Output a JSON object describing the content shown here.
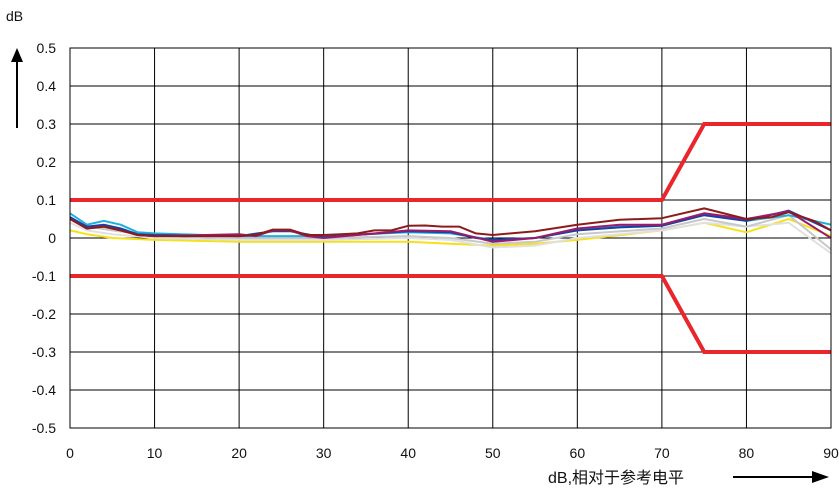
{
  "chart_data": {
    "type": "line",
    "title": "",
    "ylabel": "dB",
    "xlabel": "dB,相对于参考电平",
    "xlim": [
      0,
      90
    ],
    "ylim": [
      -0.5,
      0.5
    ],
    "x_ticks": [
      0,
      10,
      20,
      30,
      40,
      50,
      60,
      70,
      80,
      90
    ],
    "y_ticks": [
      0.5,
      0.4,
      0.3,
      0.2,
      0.1,
      0,
      -0.1,
      -0.2,
      -0.3,
      -0.4,
      -0.5
    ],
    "y_tick_labels": [
      "0.5",
      "0.4",
      "0.3",
      "0.2",
      "0.1",
      "0",
      "-0.1",
      "-0.2",
      "-0.3",
      "-0.4",
      "-0.5"
    ],
    "grid": true,
    "legend": "none",
    "limit_lines": [
      {
        "color": "#e8262b",
        "points": [
          [
            0,
            0.1
          ],
          [
            70,
            0.1
          ],
          [
            75,
            0.3
          ],
          [
            90,
            0.3
          ]
        ]
      },
      {
        "color": "#e8262b",
        "points": [
          [
            0,
            -0.1
          ],
          [
            70,
            -0.1
          ],
          [
            75,
            -0.3
          ],
          [
            90,
            -0.3
          ]
        ]
      }
    ],
    "series": [
      {
        "color": "#f4e11a",
        "points": [
          [
            0,
            0.02
          ],
          [
            2,
            0.01
          ],
          [
            5,
            0.0
          ],
          [
            10,
            -0.005
          ],
          [
            20,
            -0.01
          ],
          [
            30,
            -0.01
          ],
          [
            40,
            -0.01
          ],
          [
            45,
            -0.015
          ],
          [
            50,
            -0.02
          ],
          [
            55,
            -0.015
          ],
          [
            60,
            -0.005
          ],
          [
            70,
            0.02
          ],
          [
            75,
            0.04
          ],
          [
            80,
            0.015
          ],
          [
            85,
            0.05
          ],
          [
            90,
            0.005
          ]
        ]
      },
      {
        "color": "#e0e0e0",
        "points": [
          [
            0,
            0.04
          ],
          [
            2,
            0.02
          ],
          [
            5,
            0.01
          ],
          [
            10,
            0.0
          ],
          [
            20,
            -0.005
          ],
          [
            30,
            -0.005
          ],
          [
            40,
            0.0
          ],
          [
            45,
            -0.005
          ],
          [
            50,
            -0.025
          ],
          [
            55,
            -0.02
          ],
          [
            60,
            0.0
          ],
          [
            70,
            0.02
          ],
          [
            75,
            0.04
          ],
          [
            80,
            0.03
          ],
          [
            85,
            0.04
          ],
          [
            90,
            -0.04
          ]
        ]
      },
      {
        "color": "#c8c8c8",
        "points": [
          [
            0,
            0.05
          ],
          [
            2,
            0.03
          ],
          [
            5,
            0.02
          ],
          [
            10,
            0.005
          ],
          [
            20,
            0.0
          ],
          [
            30,
            0.0
          ],
          [
            40,
            0.005
          ],
          [
            45,
            0.0
          ],
          [
            50,
            -0.015
          ],
          [
            55,
            -0.01
          ],
          [
            60,
            0.01
          ],
          [
            70,
            0.025
          ],
          [
            75,
            0.05
          ],
          [
            80,
            0.03
          ],
          [
            85,
            0.06
          ],
          [
            90,
            -0.03
          ]
        ]
      },
      {
        "color": "#1fb0e0",
        "points": [
          [
            0,
            0.065
          ],
          [
            2,
            0.035
          ],
          [
            4,
            0.045
          ],
          [
            6,
            0.035
          ],
          [
            8,
            0.015
          ],
          [
            10,
            0.012
          ],
          [
            20,
            0.005
          ],
          [
            30,
            0.005
          ],
          [
            40,
            0.015
          ],
          [
            45,
            0.012
          ],
          [
            50,
            -0.005
          ],
          [
            55,
            0.0
          ],
          [
            60,
            0.02
          ],
          [
            65,
            0.03
          ],
          [
            70,
            0.035
          ],
          [
            75,
            0.065
          ],
          [
            80,
            0.045
          ],
          [
            85,
            0.06
          ],
          [
            90,
            0.035
          ]
        ]
      },
      {
        "color": "#1a3fa0",
        "points": [
          [
            0,
            0.055
          ],
          [
            2,
            0.03
          ],
          [
            4,
            0.035
          ],
          [
            6,
            0.025
          ],
          [
            8,
            0.01
          ],
          [
            10,
            0.008
          ],
          [
            20,
            0.005
          ],
          [
            24,
            0.018
          ],
          [
            26,
            0.018
          ],
          [
            30,
            0.002
          ],
          [
            40,
            0.018
          ],
          [
            45,
            0.015
          ],
          [
            48,
            0.0
          ],
          [
            50,
            -0.005
          ],
          [
            55,
            0.0
          ],
          [
            60,
            0.02
          ],
          [
            65,
            0.028
          ],
          [
            70,
            0.032
          ],
          [
            75,
            0.06
          ],
          [
            80,
            0.045
          ],
          [
            85,
            0.072
          ],
          [
            90,
            0.02
          ]
        ]
      },
      {
        "color": "#9b1b6a",
        "points": [
          [
            0,
            0.05
          ],
          [
            2,
            0.025
          ],
          [
            4,
            0.03
          ],
          [
            6,
            0.02
          ],
          [
            8,
            0.008
          ],
          [
            10,
            0.005
          ],
          [
            20,
            0.01
          ],
          [
            22,
            0.005
          ],
          [
            24,
            0.02
          ],
          [
            26,
            0.02
          ],
          [
            28,
            0.005
          ],
          [
            30,
            0.0
          ],
          [
            40,
            0.02
          ],
          [
            45,
            0.018
          ],
          [
            50,
            -0.01
          ],
          [
            55,
            0.0
          ],
          [
            60,
            0.025
          ],
          [
            65,
            0.035
          ],
          [
            70,
            0.035
          ],
          [
            75,
            0.065
          ],
          [
            80,
            0.05
          ],
          [
            85,
            0.07
          ],
          [
            90,
            0.0
          ]
        ]
      },
      {
        "color": "#8c1c1c",
        "points": [
          [
            0,
            0.05
          ],
          [
            2,
            0.025
          ],
          [
            4,
            0.03
          ],
          [
            6,
            0.02
          ],
          [
            8,
            0.008
          ],
          [
            10,
            0.005
          ],
          [
            20,
            0.005
          ],
          [
            22,
            0.008
          ],
          [
            24,
            0.022
          ],
          [
            26,
            0.022
          ],
          [
            28,
            0.008
          ],
          [
            30,
            0.008
          ],
          [
            32,
            0.01
          ],
          [
            34,
            0.012
          ],
          [
            36,
            0.02
          ],
          [
            38,
            0.02
          ],
          [
            40,
            0.032
          ],
          [
            42,
            0.033
          ],
          [
            44,
            0.03
          ],
          [
            46,
            0.03
          ],
          [
            48,
            0.012
          ],
          [
            50,
            0.008
          ],
          [
            55,
            0.018
          ],
          [
            60,
            0.035
          ],
          [
            65,
            0.048
          ],
          [
            70,
            0.052
          ],
          [
            75,
            0.078
          ],
          [
            80,
            0.05
          ],
          [
            83,
            0.055
          ],
          [
            85,
            0.068
          ],
          [
            88,
            0.045
          ],
          [
            90,
            0.02
          ]
        ]
      }
    ]
  }
}
